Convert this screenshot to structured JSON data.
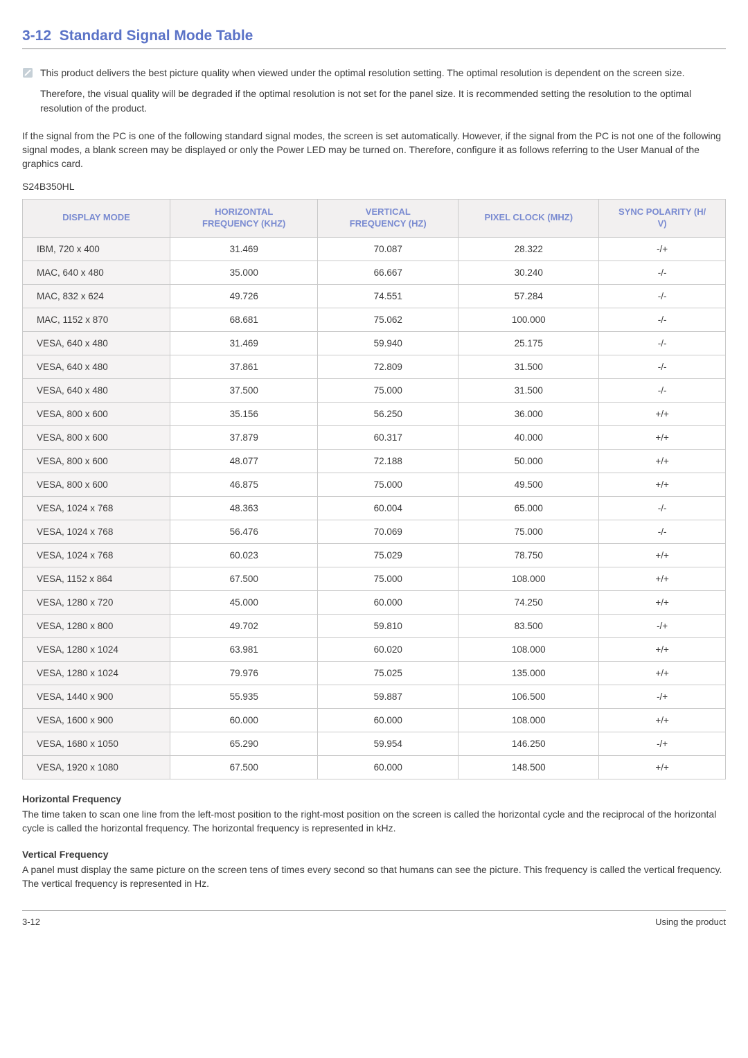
{
  "section": {
    "number": "3-12",
    "title": "Standard Signal Mode Table"
  },
  "note": {
    "p1": "This product delivers the best picture quality when viewed under the optimal resolution setting. The optimal resolution is dependent on the screen size.",
    "p2": "Therefore, the visual quality will be degraded if the optimal resolution is not set for the panel size. It is recommended setting the resolution to the optimal resolution of the product."
  },
  "intro": "If the signal from the PC is one of the following standard signal modes, the screen is set automatically. However, if the signal from the PC is not one of the following signal modes, a blank screen may be displayed or only the Power LED may be turned on. Therefore, configure it as follows referring to the User Manual of the graphics card.",
  "model": "S24B350HL",
  "table": {
    "columns": [
      "DISPLAY MODE",
      "HORIZONTAL FREQUENCY (KHZ)",
      "VERTICAL FREQUENCY (HZ)",
      "PIXEL CLOCK (MHZ)",
      "SYNC POLARITY (H/V)"
    ],
    "col_widths": [
      "21%",
      "21%",
      "20%",
      "20%",
      "18%"
    ],
    "rows": [
      [
        "IBM, 720 x 400",
        "31.469",
        "70.087",
        "28.322",
        "-/+"
      ],
      [
        "MAC, 640 x 480",
        "35.000",
        "66.667",
        "30.240",
        "-/-"
      ],
      [
        "MAC, 832 x 624",
        "49.726",
        "74.551",
        "57.284",
        "-/-"
      ],
      [
        "MAC, 1152 x 870",
        "68.681",
        "75.062",
        "100.000",
        "-/-"
      ],
      [
        "VESA, 640 x 480",
        "31.469",
        "59.940",
        "25.175",
        "-/-"
      ],
      [
        "VESA, 640 x 480",
        "37.861",
        "72.809",
        "31.500",
        "-/-"
      ],
      [
        "VESA, 640 x 480",
        "37.500",
        "75.000",
        "31.500",
        "-/-"
      ],
      [
        "VESA, 800 x 600",
        "35.156",
        "56.250",
        "36.000",
        "+/+"
      ],
      [
        "VESA, 800 x 600",
        "37.879",
        "60.317",
        "40.000",
        "+/+"
      ],
      [
        "VESA, 800 x 600",
        "48.077",
        "72.188",
        "50.000",
        "+/+"
      ],
      [
        "VESA, 800 x 600",
        "46.875",
        "75.000",
        "49.500",
        "+/+"
      ],
      [
        "VESA, 1024 x 768",
        "48.363",
        "60.004",
        "65.000",
        "-/-"
      ],
      [
        "VESA, 1024 x 768",
        "56.476",
        "70.069",
        "75.000",
        "-/-"
      ],
      [
        "VESA, 1024 x 768",
        "60.023",
        "75.029",
        "78.750",
        "+/+"
      ],
      [
        "VESA, 1152 x 864",
        "67.500",
        "75.000",
        "108.000",
        "+/+"
      ],
      [
        "VESA, 1280 x 720",
        "45.000",
        "60.000",
        "74.250",
        "+/+"
      ],
      [
        "VESA, 1280 x 800",
        "49.702",
        "59.810",
        "83.500",
        "-/+"
      ],
      [
        "VESA, 1280 x 1024",
        "63.981",
        "60.020",
        "108.000",
        "+/+"
      ],
      [
        "VESA, 1280 x 1024",
        "79.976",
        "75.025",
        "135.000",
        "+/+"
      ],
      [
        "VESA, 1440 x 900",
        "55.935",
        "59.887",
        "106.500",
        "-/+"
      ],
      [
        "VESA, 1600 x 900",
        "60.000",
        "60.000",
        "108.000",
        "+/+"
      ],
      [
        "VESA, 1680 x 1050",
        "65.290",
        "59.954",
        "146.250",
        "-/+"
      ],
      [
        "VESA, 1920 x 1080",
        "67.500",
        "60.000",
        "148.500",
        "+/+"
      ]
    ]
  },
  "horiz_freq": {
    "heading": "Horizontal Frequency",
    "body": "The time taken to scan one line from the left-most position to the right-most position on the screen is called the horizontal cycle and the reciprocal of the horizontal cycle is called the horizontal frequency. The horizontal frequency is represented in kHz."
  },
  "vert_freq": {
    "heading": "Vertical Frequency",
    "body": "A panel must display the same picture on the screen tens of times every second so that humans can see the picture. This frequency is called the vertical frequency. The vertical frequency is represented in Hz."
  },
  "footer": {
    "left": "3-12",
    "right": "Using the product"
  },
  "colors": {
    "accent": "#5b73c7",
    "header_text": "#7a8bd1",
    "header_bg": "#f2f0f0",
    "row_first_bg": "#f5f3f3",
    "border": "#c9c9c9",
    "text": "#3a3a3a",
    "note_icon": "#8aa0b0"
  }
}
